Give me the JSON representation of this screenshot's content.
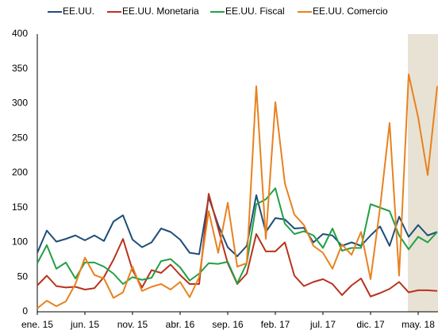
{
  "chart_data": {
    "type": "line",
    "categories": [
      "ene. 15",
      null,
      null,
      null,
      null,
      "jun. 15",
      null,
      null,
      null,
      null,
      "nov. 15",
      null,
      null,
      null,
      null,
      "abr. 16",
      null,
      null,
      null,
      null,
      "sep. 16",
      null,
      null,
      null,
      null,
      "feb. 17",
      null,
      null,
      null,
      null,
      "jul. 17",
      null,
      null,
      null,
      null,
      "dic. 17",
      null,
      null,
      null,
      null,
      "may. 18",
      null,
      null
    ],
    "series": [
      {
        "name": "EE.UU.",
        "color": "#1f4e79",
        "values": [
          85,
          117,
          101,
          105,
          110,
          103,
          110,
          102,
          130,
          139,
          104,
          93,
          100,
          120,
          115,
          104,
          85,
          83,
          165,
          125,
          93,
          80,
          95,
          168,
          115,
          135,
          133,
          120,
          121,
          100,
          112,
          110,
          95,
          100,
          95,
          110,
          123,
          95,
          137,
          108,
          125,
          110,
          115
        ]
      },
      {
        "name": "EE.UU. Monetaria",
        "color": "#b8321e",
        "values": [
          38,
          52,
          37,
          35,
          36,
          32,
          34,
          50,
          75,
          105,
          60,
          35,
          60,
          56,
          68,
          53,
          40,
          40,
          170,
          120,
          70,
          40,
          55,
          112,
          87,
          87,
          100,
          52,
          37,
          43,
          47,
          40,
          24,
          38,
          48,
          22,
          27,
          33,
          43,
          28,
          31,
          31,
          30
        ]
      },
      {
        "name": "EE.UU. Fiscal",
        "color": "#22a045",
        "values": [
          70,
          96,
          62,
          71,
          48,
          71,
          71,
          65,
          55,
          40,
          50,
          46,
          49,
          73,
          76,
          64,
          45,
          55,
          70,
          69,
          72,
          41,
          70,
          155,
          162,
          178,
          127,
          112,
          116,
          110,
          92,
          120,
          88,
          92,
          92,
          155,
          150,
          145,
          110,
          90,
          108,
          100,
          115
        ]
      },
      {
        "name": "EE.UU. Comercio",
        "color": "#e8821e",
        "values": [
          5,
          16,
          8,
          15,
          40,
          78,
          53,
          48,
          20,
          28,
          65,
          30,
          36,
          40,
          32,
          43,
          21,
          50,
          145,
          85,
          157,
          65,
          70,
          325,
          105,
          302,
          185,
          140,
          125,
          95,
          85,
          62,
          97,
          82,
          115,
          47,
          150,
          272,
          52,
          342,
          280,
          197,
          325
        ]
      }
    ],
    "ylim": [
      0,
      400
    ],
    "yticks": [
      0,
      50,
      100,
      150,
      200,
      250,
      300,
      350,
      400
    ],
    "legend": "top"
  }
}
